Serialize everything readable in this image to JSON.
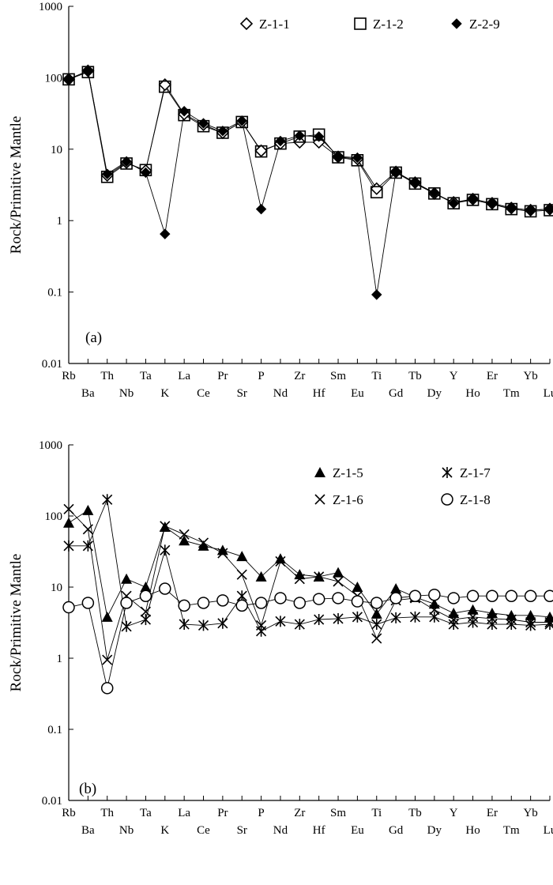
{
  "chart_data": [
    {
      "type": "line",
      "yscale": "log",
      "ylim": [
        0.01,
        1000
      ],
      "ylabel": "Rock/Primitive Mantle",
      "panel_label": "(a)",
      "yticks": [
        "1000",
        "100",
        "10",
        "1",
        "0.1",
        "0.01"
      ],
      "categories": [
        "Rb",
        "Ba",
        "Th",
        "Nb",
        "Ta",
        "K",
        "La",
        "Ce",
        "Pr",
        "Sr",
        "P",
        "Nd",
        "Zr",
        "Hf",
        "Sm",
        "Eu",
        "Ti",
        "Gd",
        "Tb",
        "Dy",
        "Y",
        "Ho",
        "Er",
        "Tm",
        "Yb",
        "Lu"
      ],
      "legend_position": "top-right",
      "series": [
        {
          "name": "Z-1-1",
          "marker": "diamond-open",
          "values": [
            95,
            125,
            4.3,
            6.5,
            5.0,
            80,
            31,
            22,
            17,
            24,
            9.5,
            12,
            12.5,
            12.5,
            7.8,
            7.3,
            2.8,
            4.8,
            3.4,
            2.4,
            1.8,
            2.0,
            1.75,
            1.5,
            1.4,
            1.45
          ]
        },
        {
          "name": "Z-1-2",
          "marker": "square-open",
          "values": [
            95,
            120,
            4.1,
            6.3,
            5.1,
            75,
            30,
            21,
            17,
            24,
            9.3,
            12,
            15,
            16,
            7.7,
            7.0,
            2.5,
            4.7,
            3.3,
            2.4,
            1.75,
            1.95,
            1.7,
            1.45,
            1.35,
            1.4
          ]
        },
        {
          "name": "Z-2-9",
          "marker": "diamond-filled",
          "values": [
            96,
            125,
            4.5,
            6.7,
            4.7,
            0.65,
            34,
            23,
            18,
            25,
            1.45,
            13,
            15.5,
            15,
            7.9,
            7.6,
            0.092,
            4.8,
            3.4,
            2.45,
            1.75,
            2.0,
            1.75,
            1.5,
            1.4,
            1.45
          ]
        }
      ]
    },
    {
      "type": "line",
      "yscale": "log",
      "ylim": [
        0.01,
        1000
      ],
      "ylabel": "Rock/Primitive Mantle",
      "panel_label": "(b)",
      "yticks": [
        "1000",
        "100",
        "10",
        "1",
        "0.1",
        "0.01"
      ],
      "categories": [
        "Rb",
        "Ba",
        "Th",
        "Nb",
        "Ta",
        "K",
        "La",
        "Ce",
        "Pr",
        "Sr",
        "P",
        "Nd",
        "Zr",
        "Hf",
        "Sm",
        "Eu",
        "Ti",
        "Gd",
        "Tb",
        "Dy",
        "Y",
        "Ho",
        "Er",
        "Tm",
        "Yb",
        "Lu"
      ],
      "legend_position": "top-right",
      "series": [
        {
          "name": "Z-1-5",
          "marker": "triangle-filled",
          "values": [
            80,
            120,
            3.8,
            13,
            10,
            70,
            45,
            38,
            33,
            27,
            14,
            25,
            15,
            14,
            16,
            10,
            4.2,
            9.5,
            7.2,
            5.8,
            4.3,
            4.8,
            4.3,
            4.0,
            4.0,
            3.8
          ]
        },
        {
          "name": "Z-1-6",
          "marker": "x",
          "values": [
            125,
            65,
            0.95,
            7.5,
            4.5,
            72,
            55,
            42,
            30,
            15,
            2.9,
            23,
            13,
            14,
            12,
            7.5,
            1.9,
            6.5,
            7.0,
            4.8,
            3.5,
            3.8,
            3.6,
            3.5,
            3.2,
            3.2
          ]
        },
        {
          "name": "Z-1-7",
          "marker": "asterisk",
          "values": [
            38,
            38,
            170,
            2.8,
            3.5,
            33,
            3.0,
            2.9,
            3.1,
            7.5,
            2.4,
            3.3,
            3.0,
            3.5,
            3.6,
            3.8,
            3.0,
            3.7,
            3.8,
            3.8,
            3.0,
            3.2,
            3.0,
            3.0,
            2.9,
            3.0
          ]
        },
        {
          "name": "Z-1-8",
          "marker": "circle-open",
          "values": [
            5.2,
            6.0,
            0.38,
            6.0,
            7.5,
            9.5,
            5.5,
            6.0,
            6.5,
            5.5,
            6.0,
            7.0,
            6.0,
            6.8,
            7.0,
            6.3,
            6.0,
            7.0,
            7.5,
            7.8,
            7.0,
            7.5,
            7.5,
            7.5,
            7.5,
            7.5
          ]
        }
      ]
    }
  ]
}
